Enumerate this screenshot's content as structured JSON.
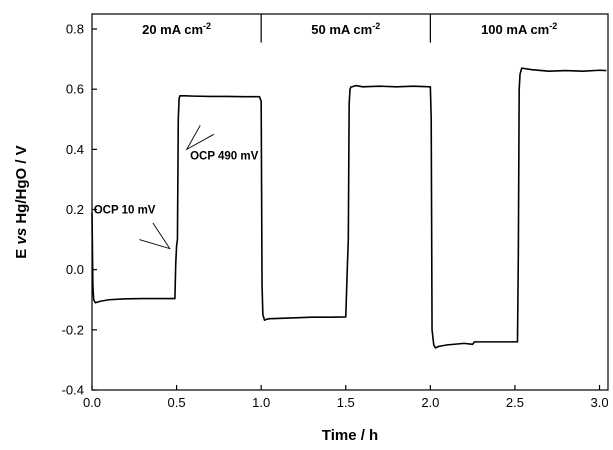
{
  "chart_data": {
    "type": "line",
    "xlabel": "Time / h",
    "ylabel": {
      "pre": "E ",
      "italic": "vs",
      "post": " Hg/HgO / V"
    },
    "xlim": [
      0,
      3.05
    ],
    "ylim": [
      -0.4,
      0.85
    ],
    "xticks": [
      "0.0",
      "0.5",
      "1.0",
      "1.5",
      "2.0",
      "2.5",
      "3.0"
    ],
    "yticks": [
      "-0.4",
      "-0.2",
      "0.0",
      "0.2",
      "0.4",
      "0.6",
      "0.8"
    ],
    "segments": [
      {
        "label": "20 mA cm",
        "sup": "-2",
        "x_start": 0.0,
        "x_end": 1.0
      },
      {
        "label": "50 mA cm",
        "sup": "-2",
        "x_start": 1.0,
        "x_end": 2.0
      },
      {
        "label": "100 mA cm",
        "sup": "-2",
        "x_start": 2.0,
        "x_end": 3.05
      }
    ],
    "annotations": [
      {
        "text": "OCP 10 mV",
        "x": 0.01,
        "y": 0.2
      },
      {
        "text": "OCP 490 mV",
        "x": 0.58,
        "y": 0.38
      }
    ],
    "series": [
      {
        "x": [
          0.0,
          0.005,
          0.01,
          0.02,
          0.05,
          0.1,
          0.2,
          0.3,
          0.4,
          0.49,
          0.495,
          0.5,
          0.505,
          0.51,
          0.515,
          0.52,
          0.55,
          0.6,
          0.7,
          0.8,
          0.9,
          0.99,
          1.0,
          1.005,
          1.01,
          1.02,
          1.03,
          1.05,
          1.1,
          1.2,
          1.3,
          1.4,
          1.5,
          1.51,
          1.515,
          1.52,
          1.525,
          1.53,
          1.56,
          1.6,
          1.7,
          1.8,
          1.9,
          2.0,
          2.005,
          2.01,
          2.02,
          2.03,
          2.05,
          2.1,
          2.2,
          2.25,
          2.26,
          2.3,
          2.4,
          2.5,
          2.515,
          2.52,
          2.525,
          2.53,
          2.54,
          2.6,
          2.7,
          2.8,
          2.9,
          3.0,
          3.04
        ],
        "y": [
          0.19,
          -0.05,
          -0.1,
          -0.11,
          -0.105,
          -0.1,
          -0.097,
          -0.096,
          -0.096,
          -0.096,
          0.02,
          0.08,
          0.1,
          0.5,
          0.57,
          0.578,
          0.578,
          0.577,
          0.576,
          0.576,
          0.575,
          0.575,
          0.56,
          -0.05,
          -0.15,
          -0.168,
          -0.165,
          -0.163,
          -0.162,
          -0.16,
          -0.158,
          -0.158,
          -0.157,
          0.02,
          0.1,
          0.55,
          0.6,
          0.607,
          0.612,
          0.608,
          0.61,
          0.608,
          0.61,
          0.608,
          0.5,
          -0.2,
          -0.25,
          -0.26,
          -0.255,
          -0.25,
          -0.245,
          -0.248,
          -0.24,
          -0.24,
          -0.24,
          -0.24,
          -0.24,
          0.05,
          0.6,
          0.65,
          0.67,
          0.665,
          0.66,
          0.662,
          0.66,
          0.663,
          0.662
        ]
      }
    ]
  }
}
